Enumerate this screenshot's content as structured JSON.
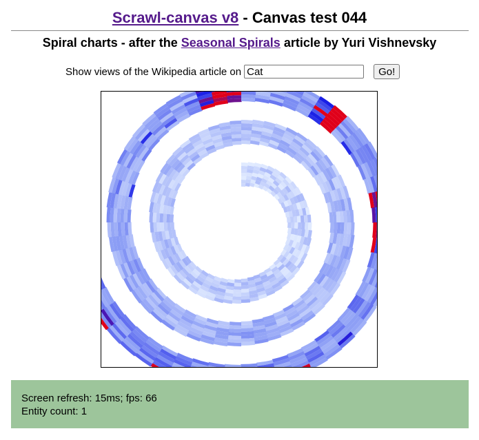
{
  "header": {
    "title_link": "Scrawl-canvas v8",
    "title_rest": " - Canvas test 044"
  },
  "subheader": {
    "prefix": "Spiral charts - after the ",
    "link": "Seasonal Spirals",
    "suffix": " article by Yuri Vishnevsky"
  },
  "controls": {
    "label": "Show views of the Wikipedia article on",
    "input_value": "Cat",
    "button_label": "Go!"
  },
  "status": {
    "refresh_text": "Screen refresh: 15ms; fps: 66",
    "entity_text": "Entity count: 1"
  },
  "colors": {
    "link": "#551a8b",
    "status_bg": "#9dc59b",
    "spiral_light": "#e1ebff",
    "spiral_mid": "#8a9cf5",
    "spiral_dark": "#1a1fe6",
    "spiral_peak": "#e0001a"
  }
}
